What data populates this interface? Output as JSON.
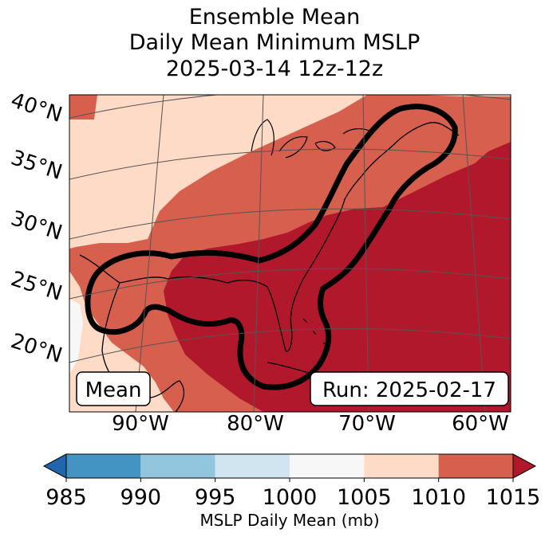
{
  "title_lines": [
    "Ensemble Mean",
    "Daily Mean Minimum MSLP",
    "2025-03-14 12z-12z"
  ],
  "chart_data": {
    "type": "heatmap",
    "subtype": "filled-contour map",
    "title": "Ensemble Mean Daily Mean Minimum MSLP 2025-03-14 12z-12z",
    "lat_labels": [
      "40°N",
      "35°N",
      "30°N",
      "25°N",
      "20°N"
    ],
    "lon_labels": [
      "90°W",
      "80°W",
      "70°W",
      "60°W"
    ],
    "colorbar": {
      "label": "MSLP Daily Mean (mb)",
      "ticks": [
        "985",
        "990",
        "995",
        "1000",
        "1005",
        "1010",
        "1015"
      ],
      "bins": [
        {
          "range": "<985",
          "color": "#2166ac"
        },
        {
          "range": "985-990",
          "color": "#4393c3"
        },
        {
          "range": "990-995",
          "color": "#92c5de"
        },
        {
          "range": "995-1000",
          "color": "#d1e5f0"
        },
        {
          "range": "1000-1005",
          "color": "#f7f7f7"
        },
        {
          "range": "1005-1010",
          "color": "#fddbc7"
        },
        {
          "range": "1010-1015",
          "color": "#d6604d"
        },
        {
          "range": ">1015",
          "color": "#b2182b"
        }
      ]
    },
    "annotations": {
      "left": "Mean",
      "right": "Run: 2025-02-17"
    },
    "contour_outline": "thick black contour enclosing the US East Coast and Gulf of Mexico"
  },
  "colors": {
    "white_band": "#f7f7f7",
    "light_band": "#fddbc7",
    "mid_band": "#d6604d",
    "dark_band": "#b2182b",
    "grid": "#555555"
  }
}
